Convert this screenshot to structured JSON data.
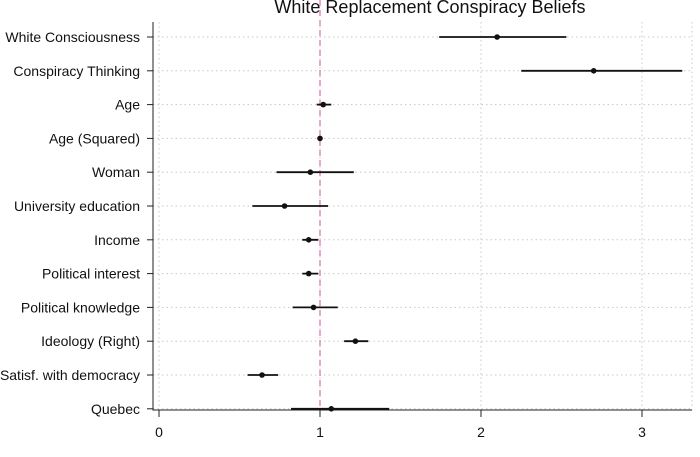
{
  "chart_data": {
    "type": "coefficient-plot",
    "title": "White Replacement Conspiracy Beliefs",
    "xlabel": "",
    "ylabel": "",
    "xlim": [
      0,
      3.3
    ],
    "xticks": [
      0,
      1,
      2,
      3
    ],
    "reference_line": 1,
    "grid": true,
    "colors": {
      "reference_line": "#d96fb2",
      "marker": "#111111",
      "grid": "#c8c8c8"
    },
    "categories": [
      "White Consciousness",
      "Conspiracy Thinking",
      "Age",
      "Age (Squared)",
      "Woman",
      "University education",
      "Income",
      "Political interest",
      "Political knowledge",
      "Ideology (Right)",
      "Satisf. with democracy",
      "Quebec"
    ],
    "estimates": [
      2.1,
      2.7,
      1.02,
      1.0,
      0.94,
      0.78,
      0.93,
      0.93,
      0.96,
      1.22,
      0.64,
      1.07
    ],
    "ci_low": [
      1.74,
      2.25,
      0.98,
      0.995,
      0.73,
      0.58,
      0.89,
      0.89,
      0.83,
      1.15,
      0.55,
      0.82
    ],
    "ci_high": [
      2.53,
      3.25,
      1.07,
      1.005,
      1.21,
      1.05,
      0.99,
      0.99,
      1.11,
      1.3,
      0.74,
      1.43
    ]
  }
}
